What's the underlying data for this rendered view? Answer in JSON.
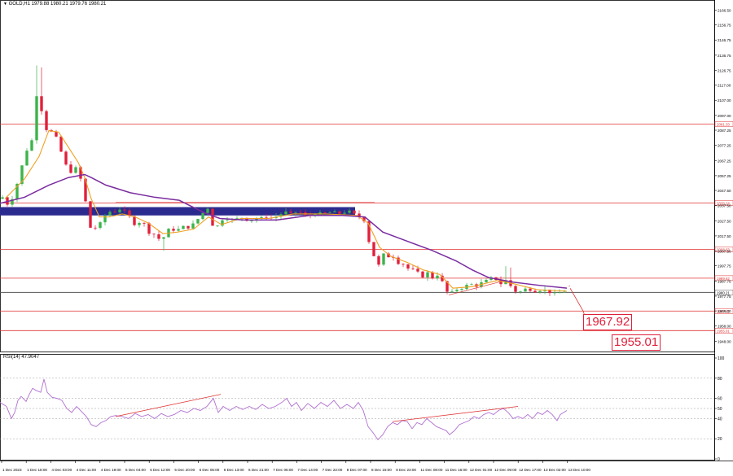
{
  "header": {
    "symbol_line": "GOLD,H1  1979.88 1980.21 1979.76 1980.21",
    "rsi_title": "RSI(14) 47.9047"
  },
  "colors": {
    "bull": "#3cb44b",
    "bear": "#e0203b",
    "ma_fast": "#f0a020",
    "ma_slow": "#7a2ca0",
    "level": "#e03030",
    "zone": "#2b2b8f",
    "rsi": "#b070d0",
    "grid": "#9e9e9e",
    "current_price": "#555555"
  },
  "chart_data": [
    {
      "type": "candlestick",
      "title": "GOLD,H1",
      "ylim": [
        1941.2,
        2166.2
      ],
      "y_ticks": [
        "2166.50",
        "2156.75",
        "2146.75",
        "2136.75",
        "2126.75",
        "2117.00",
        "2107.00",
        "2097.00",
        "2087.25",
        "2077.25",
        "2067.25",
        "2057.25",
        "2047.50",
        "2037.50",
        "2027.50",
        "2017.50",
        "2007.50",
        "1997.75",
        "1987.75",
        "1977.75",
        "1968.00",
        "1958.00",
        "1948.00"
      ],
      "x_labels": [
        "1 Dec 2023",
        "1 Dec 18:00",
        "4 Dec 03:00",
        "4 Dec 11:00",
        "4 Dec 19:00",
        "5 Dec 04:00",
        "5 Dec 12:00",
        "5 Dec 20:00",
        "6 Dec 05:00",
        "6 Dec 13:00",
        "6 Dec 21:00",
        "7 Dec 06:00",
        "7 Dec 14:00",
        "7 Dec 22:00",
        "8 Dec 07:00",
        "8 Dec 15:00",
        "8 Dec 23:00",
        "11 Dec 08:00",
        "11 Dec 16:00",
        "12 Dec 01:00",
        "12 Dec 09:00",
        "12 Dec 17:00",
        "13 Dec 02:00",
        "13 Dec 10:00"
      ],
      "price_path": [
        [
          0,
          2041
        ],
        [
          6,
          2043
        ],
        [
          10,
          2038
        ],
        [
          16,
          2040
        ],
        [
          22,
          2048
        ],
        [
          28,
          2060
        ],
        [
          34,
          2071
        ],
        [
          40,
          2081
        ],
        [
          44,
          2080
        ],
        [
          47,
          2110
        ],
        [
          50,
          2112
        ],
        [
          53,
          2102
        ],
        [
          56,
          2098
        ],
        [
          60,
          2088
        ],
        [
          66,
          2086
        ],
        [
          72,
          2082
        ],
        [
          78,
          2073
        ],
        [
          84,
          2064
        ],
        [
          90,
          2060
        ],
        [
          96,
          2062
        ],
        [
          100,
          2058
        ],
        [
          104,
          2052
        ],
        [
          108,
          2040
        ],
        [
          112,
          2024
        ],
        [
          116,
          2022
        ],
        [
          120,
          2023
        ],
        [
          124,
          2027
        ],
        [
          128,
          2024
        ],
        [
          132,
          2031
        ],
        [
          136,
          2034
        ],
        [
          140,
          2033
        ],
        [
          146,
          2034
        ],
        [
          152,
          2036
        ],
        [
          158,
          2032
        ],
        [
          164,
          2029
        ],
        [
          170,
          2024
        ],
        [
          176,
          2028
        ],
        [
          182,
          2024
        ],
        [
          188,
          2018
        ],
        [
          194,
          2019
        ],
        [
          200,
          2014
        ],
        [
          206,
          2018
        ],
        [
          212,
          2023
        ],
        [
          218,
          2021
        ],
        [
          224,
          2022
        ],
        [
          230,
          2024
        ],
        [
          236,
          2023
        ],
        [
          242,
          2026
        ],
        [
          248,
          2030
        ],
        [
          254,
          2034
        ],
        [
          258,
          2036
        ],
        [
          262,
          2029
        ],
        [
          266,
          2021
        ],
        [
          270,
          2024
        ],
        [
          274,
          2028
        ],
        [
          280,
          2030
        ],
        [
          286,
          2028
        ],
        [
          292,
          2028
        ],
        [
          298,
          2030
        ],
        [
          304,
          2029
        ],
        [
          310,
          2027
        ],
        [
          316,
          2030
        ],
        [
          322,
          2028
        ],
        [
          328,
          2031
        ],
        [
          334,
          2029
        ],
        [
          340,
          2030
        ],
        [
          346,
          2031
        ],
        [
          352,
          2034
        ],
        [
          358,
          2031
        ],
        [
          364,
          2033
        ],
        [
          370,
          2034
        ],
        [
          376,
          2031
        ],
        [
          382,
          2030
        ],
        [
          388,
          2033
        ],
        [
          394,
          2032
        ],
        [
          400,
          2032
        ],
        [
          406,
          2033
        ],
        [
          412,
          2033
        ],
        [
          418,
          2032
        ],
        [
          424,
          2033
        ],
        [
          430,
          2034
        ],
        [
          436,
          2032
        ],
        [
          440,
          2031
        ],
        [
          444,
          2030
        ],
        [
          448,
          2030
        ],
        [
          452,
          2026
        ],
        [
          456,
          2014
        ],
        [
          460,
          2007
        ],
        [
          464,
          2002
        ],
        [
          468,
          1998
        ],
        [
          472,
          2004
        ],
        [
          476,
          2006
        ],
        [
          480,
          2004
        ],
        [
          486,
          2004
        ],
        [
          492,
          2000
        ],
        [
          498,
          1999
        ],
        [
          504,
          1996
        ],
        [
          510,
          1995
        ],
        [
          516,
          1993
        ],
        [
          522,
          1991
        ],
        [
          528,
          1993
        ],
        [
          534,
          1990
        ],
        [
          540,
          1992
        ],
        [
          546,
          1987
        ],
        [
          550,
          1982
        ],
        [
          554,
          1979
        ],
        [
          558,
          1980
        ],
        [
          562,
          1982
        ],
        [
          568,
          1983
        ],
        [
          574,
          1984
        ],
        [
          580,
          1986
        ],
        [
          586,
          1984
        ],
        [
          592,
          1986
        ],
        [
          598,
          1987
        ],
        [
          604,
          1989
        ],
        [
          610,
          1990
        ],
        [
          616,
          1987
        ],
        [
          620,
          1985
        ],
        [
          624,
          1988
        ],
        [
          628,
          1986
        ],
        [
          632,
          1983
        ],
        [
          636,
          1981
        ],
        [
          640,
          1980
        ],
        [
          646,
          1982
        ],
        [
          652,
          1983
        ],
        [
          658,
          1981
        ],
        [
          664,
          1982
        ],
        [
          670,
          1982
        ],
        [
          676,
          1981
        ],
        [
          680,
          1980
        ],
        [
          684,
          1979
        ],
        [
          688,
          1980
        ],
        [
          692,
          1980
        ],
        [
          696,
          1981
        ]
      ],
      "ma_fast": [
        [
          6,
          2042
        ],
        [
          30,
          2055
        ],
        [
          48,
          2070
        ],
        [
          60,
          2087
        ],
        [
          72,
          2086
        ],
        [
          84,
          2076
        ],
        [
          96,
          2066
        ],
        [
          104,
          2056
        ],
        [
          112,
          2042
        ],
        [
          122,
          2030
        ],
        [
          134,
          2030
        ],
        [
          150,
          2032
        ],
        [
          166,
          2030
        ],
        [
          182,
          2026
        ],
        [
          200,
          2019
        ],
        [
          218,
          2020
        ],
        [
          238,
          2022
        ],
        [
          256,
          2030
        ],
        [
          272,
          2025
        ],
        [
          296,
          2029
        ],
        [
          330,
          2029
        ],
        [
          360,
          2032
        ],
        [
          400,
          2032
        ],
        [
          438,
          2031
        ],
        [
          452,
          2026
        ],
        [
          466,
          2010
        ],
        [
          480,
          2004
        ],
        [
          500,
          2000
        ],
        [
          520,
          1995
        ],
        [
          540,
          1992
        ],
        [
          556,
          1983
        ],
        [
          580,
          1984
        ],
        [
          610,
          1988
        ],
        [
          630,
          1986
        ],
        [
          660,
          1982
        ],
        [
          696,
          1981
        ]
      ],
      "ma_slow": [
        [
          0,
          2039
        ],
        [
          30,
          2043
        ],
        [
          60,
          2051
        ],
        [
          84,
          2056
        ],
        [
          104,
          2058
        ],
        [
          112,
          2056
        ],
        [
          130,
          2051
        ],
        [
          160,
          2046
        ],
        [
          190,
          2043
        ],
        [
          220,
          2041
        ],
        [
          250,
          2033
        ],
        [
          270,
          2029
        ],
        [
          300,
          2028
        ],
        [
          340,
          2028
        ],
        [
          380,
          2031
        ],
        [
          420,
          2031
        ],
        [
          448,
          2030
        ],
        [
          470,
          2020
        ],
        [
          500,
          2014
        ],
        [
          530,
          2008
        ],
        [
          560,
          2001
        ],
        [
          580,
          1995
        ],
        [
          600,
          1990
        ],
        [
          630,
          1987
        ],
        [
          660,
          1985
        ],
        [
          696,
          1983
        ]
      ],
      "horizontal_levels": [
        {
          "price": 2091.3,
          "label": "2091.33",
          "color": "#e03030"
        },
        {
          "price": 2039.2,
          "label": "2039.24",
          "color": "#e03030"
        },
        {
          "price": 2008.6,
          "label": "2008.63",
          "color": "#e03030"
        },
        {
          "price": 1989.6,
          "label": "1989.62",
          "color": "#e03030"
        },
        {
          "price": 1980.2,
          "label": "1980.21",
          "color": "#555555"
        },
        {
          "price": 1967.9,
          "label": "1967.92",
          "color": "#e03030"
        },
        {
          "price": 1955.0,
          "label": "1955.01",
          "color": "#e03030"
        }
      ],
      "supply_zone": {
        "price_low": 2031.0,
        "price_high": 2036.5
      },
      "annotations": {
        "target_1": "1967.92",
        "target_2": "1955.01"
      }
    },
    {
      "type": "line",
      "title": "RSI(14)",
      "ylim": [
        0,
        100
      ],
      "y_ticks": [
        "100",
        "80",
        "60",
        "50",
        "40",
        "20",
        "0"
      ],
      "values": [
        [
          0,
          56
        ],
        [
          8,
          52
        ],
        [
          14,
          40
        ],
        [
          18,
          46
        ],
        [
          22,
          58
        ],
        [
          26,
          62
        ],
        [
          32,
          57
        ],
        [
          36,
          64
        ],
        [
          40,
          70
        ],
        [
          44,
          68
        ],
        [
          50,
          66
        ],
        [
          54,
          79
        ],
        [
          58,
          66
        ],
        [
          64,
          61
        ],
        [
          70,
          60
        ],
        [
          76,
          58
        ],
        [
          82,
          50
        ],
        [
          88,
          46
        ],
        [
          94,
          52
        ],
        [
          100,
          47
        ],
        [
          106,
          42
        ],
        [
          112,
          34
        ],
        [
          118,
          32
        ],
        [
          124,
          36
        ],
        [
          130,
          38
        ],
        [
          136,
          42
        ],
        [
          142,
          43
        ],
        [
          150,
          42
        ],
        [
          158,
          40
        ],
        [
          166,
          45
        ],
        [
          174,
          42
        ],
        [
          182,
          44
        ],
        [
          190,
          40
        ],
        [
          198,
          45
        ],
        [
          206,
          42
        ],
        [
          214,
          44
        ],
        [
          222,
          48
        ],
        [
          230,
          46
        ],
        [
          238,
          50
        ],
        [
          246,
          48
        ],
        [
          254,
          52
        ],
        [
          262,
          60
        ],
        [
          268,
          46
        ],
        [
          274,
          52
        ],
        [
          282,
          48
        ],
        [
          290,
          52
        ],
        [
          298,
          49
        ],
        [
          306,
          52
        ],
        [
          314,
          49
        ],
        [
          322,
          54
        ],
        [
          330,
          50
        ],
        [
          338,
          52
        ],
        [
          346,
          56
        ],
        [
          352,
          60
        ],
        [
          358,
          52
        ],
        [
          364,
          56
        ],
        [
          370,
          48
        ],
        [
          378,
          55
        ],
        [
          386,
          50
        ],
        [
          394,
          56
        ],
        [
          402,
          52
        ],
        [
          410,
          58
        ],
        [
          418,
          50
        ],
        [
          426,
          54
        ],
        [
          434,
          50
        ],
        [
          440,
          56
        ],
        [
          446,
          48
        ],
        [
          452,
          32
        ],
        [
          458,
          26
        ],
        [
          464,
          19
        ],
        [
          470,
          24
        ],
        [
          476,
          32
        ],
        [
          482,
          36
        ],
        [
          488,
          34
        ],
        [
          494,
          38
        ],
        [
          500,
          37
        ],
        [
          506,
          30
        ],
        [
          512,
          36
        ],
        [
          518,
          34
        ],
        [
          524,
          40
        ],
        [
          530,
          36
        ],
        [
          536,
          32
        ],
        [
          542,
          30
        ],
        [
          548,
          28
        ],
        [
          552,
          24
        ],
        [
          558,
          28
        ],
        [
          564,
          34
        ],
        [
          570,
          36
        ],
        [
          576,
          38
        ],
        [
          582,
          42
        ],
        [
          588,
          40
        ],
        [
          594,
          44
        ],
        [
          600,
          46
        ],
        [
          606,
          44
        ],
        [
          612,
          48
        ],
        [
          618,
          50
        ],
        [
          624,
          46
        ],
        [
          630,
          40
        ],
        [
          636,
          42
        ],
        [
          642,
          40
        ],
        [
          648,
          44
        ],
        [
          654,
          40
        ],
        [
          660,
          46
        ],
        [
          666,
          44
        ],
        [
          672,
          48
        ],
        [
          678,
          44
        ],
        [
          684,
          38
        ],
        [
          688,
          44
        ],
        [
          692,
          46
        ],
        [
          696,
          48
        ]
      ]
    }
  ]
}
